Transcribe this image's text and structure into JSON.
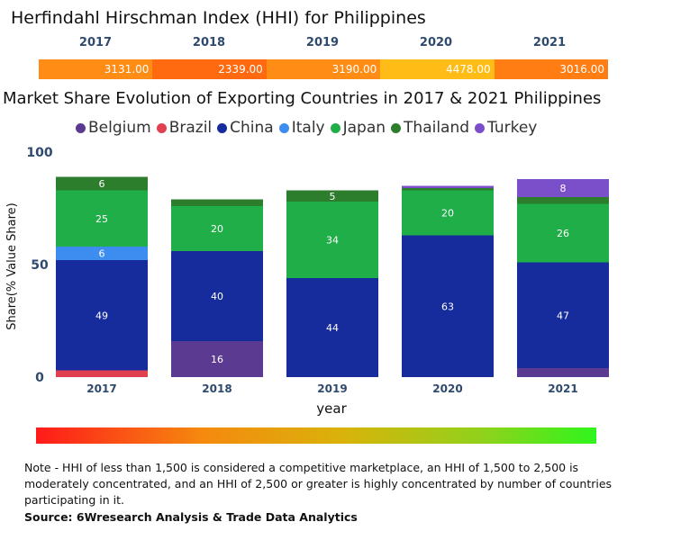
{
  "hhi": {
    "title": "Herfindahl Hirschman Index (HHI) for Philippines",
    "cells": [
      {
        "year": "2017",
        "value": "3131.00",
        "color": "#ff8c14"
      },
      {
        "year": "2018",
        "value": "2339.00",
        "color": "#ff6a10"
      },
      {
        "year": "2019",
        "value": "3190.00",
        "color": "#ff8c14"
      },
      {
        "year": "2020",
        "value": "4478.00",
        "color": "#ffbc16"
      },
      {
        "year": "2021",
        "value": "3016.00",
        "color": "#ff7d12"
      }
    ]
  },
  "chart_data": {
    "type": "stacked-bar",
    "title": "Market Share Evolution of Exporting Countries in 2017 & 2021 Philippines",
    "xlabel": "year",
    "ylabel": "Share(% Value Share)",
    "ylim": [
      0,
      100
    ],
    "yticks": [
      "0",
      "50",
      "100"
    ],
    "categories": [
      "2017",
      "2018",
      "2019",
      "2020",
      "2021"
    ],
    "series": [
      {
        "name": "Belgium",
        "color": "#5b3a91",
        "values": [
          0,
          16,
          0,
          0,
          4
        ]
      },
      {
        "name": "Brazil",
        "color": "#e04050",
        "values": [
          3,
          0,
          0,
          0,
          0
        ]
      },
      {
        "name": "China",
        "color": "#162c9c",
        "values": [
          49,
          40,
          44,
          63,
          47
        ]
      },
      {
        "name": "Italy",
        "color": "#3d8cf0",
        "values": [
          6,
          0,
          0,
          0,
          0
        ]
      },
      {
        "name": "Japan",
        "color": "#1fae48",
        "values": [
          25,
          20,
          34,
          20,
          26
        ]
      },
      {
        "name": "Thailand",
        "color": "#2c7d2c",
        "values": [
          6,
          3,
          5,
          1,
          3
        ]
      },
      {
        "name": "Turkey",
        "color": "#7b4fc9",
        "values": [
          0,
          0,
          0,
          1,
          8
        ]
      }
    ],
    "data_labels": [
      {
        "category": "2017",
        "series": "China",
        "text": "49"
      },
      {
        "category": "2017",
        "series": "Italy",
        "text": "6"
      },
      {
        "category": "2017",
        "series": "Japan",
        "text": "25"
      },
      {
        "category": "2017",
        "series": "Thailand",
        "text": "6"
      },
      {
        "category": "2018",
        "series": "Belgium",
        "text": "16"
      },
      {
        "category": "2018",
        "series": "China",
        "text": "40"
      },
      {
        "category": "2018",
        "series": "Japan",
        "text": "20"
      },
      {
        "category": "2019",
        "series": "China",
        "text": "44"
      },
      {
        "category": "2019",
        "series": "Japan",
        "text": "34"
      },
      {
        "category": "2019",
        "series": "Thailand",
        "text": "5"
      },
      {
        "category": "2020",
        "series": "China",
        "text": "63"
      },
      {
        "category": "2020",
        "series": "Japan",
        "text": "20"
      },
      {
        "category": "2021",
        "series": "China",
        "text": "47"
      },
      {
        "category": "2021",
        "series": "Japan",
        "text": "26"
      },
      {
        "category": "2021",
        "series": "Turkey",
        "text": "8"
      }
    ]
  },
  "note": "Note - HHI of less than 1,500 is considered a competitive marketplace, an HHI of 1,500 to 2,500 is moderately concentrated, and an HHI of 2,500 or greater is highly concentrated by number of countries participating in it.",
  "source": "Source: 6Wresearch Analysis & Trade Data Analytics"
}
